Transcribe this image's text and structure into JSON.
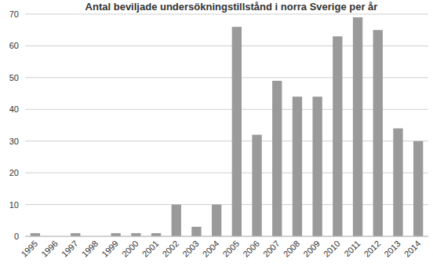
{
  "chart_data": {
    "type": "bar",
    "title": "Antal beviljade undersökningstillstånd i norra Sverige per år",
    "categories": [
      "1995",
      "1996",
      "1997",
      "1998",
      "1999",
      "2000",
      "2001",
      "2002",
      "2003",
      "2004",
      "2005",
      "2006",
      "2007",
      "2008",
      "2009",
      "2010",
      "2011",
      "2012",
      "2013",
      "2014"
    ],
    "values": [
      1,
      0,
      1,
      0,
      1,
      1,
      1,
      10,
      3,
      10,
      66,
      32,
      49,
      44,
      44,
      63,
      69,
      65,
      34,
      30
    ],
    "color": "#9a9a9a",
    "ylim": [
      0,
      70
    ],
    "yticks": [
      0,
      10,
      20,
      30,
      40,
      50,
      60,
      70
    ],
    "grid": true
  }
}
